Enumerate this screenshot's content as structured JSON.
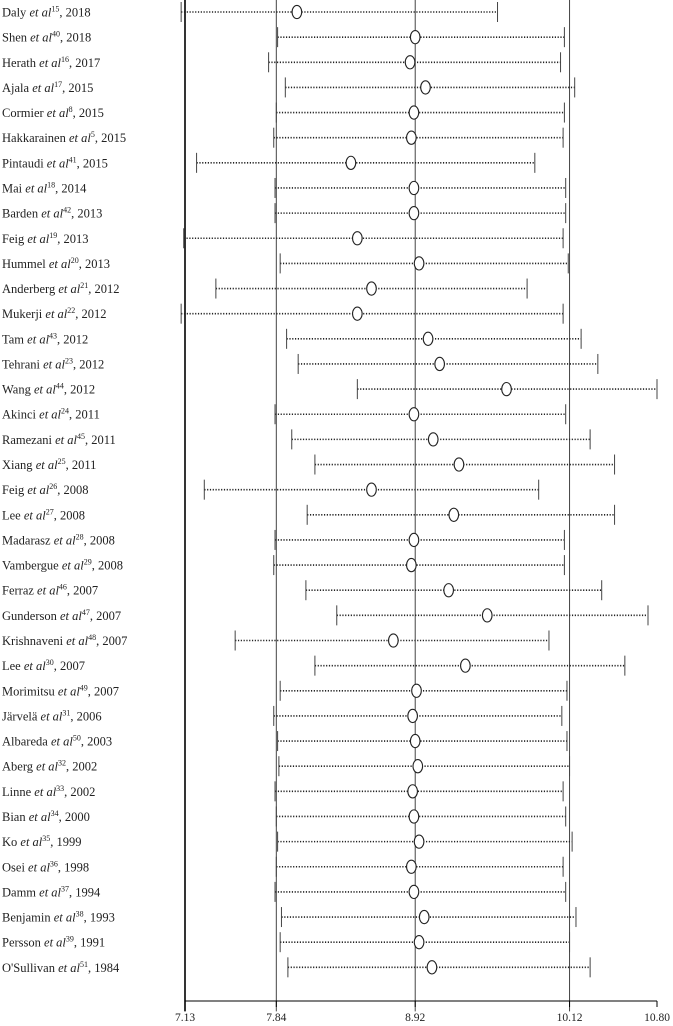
{
  "chart_data": {
    "type": "forest",
    "title": "",
    "xlabel": "",
    "ylabel": "",
    "xlim": [
      7.13,
      10.8
    ],
    "x_ticks": [
      "7.13",
      "7.84",
      "8.92",
      "10.12",
      "10.80"
    ],
    "reference_lines": [
      7.84,
      8.92,
      10.12
    ],
    "studies": [
      {
        "author": "Daly",
        "ref": "15",
        "year": "2018",
        "mean": 8.0,
        "lo": 7.1,
        "hi": 9.56
      },
      {
        "author": "Shen",
        "ref": "40",
        "year": "2018",
        "mean": 8.92,
        "lo": 7.85,
        "hi": 10.08
      },
      {
        "author": "Herath",
        "ref": "16",
        "year": "2017",
        "mean": 8.88,
        "lo": 7.78,
        "hi": 10.05
      },
      {
        "author": "Ajala",
        "ref": "17",
        "year": "2015",
        "mean": 9.0,
        "lo": 7.91,
        "hi": 10.16
      },
      {
        "author": "Cormier",
        "ref": "8",
        "year": "2015",
        "mean": 8.91,
        "lo": 7.84,
        "hi": 10.08
      },
      {
        "author": "Hakkarainen",
        "ref": "5",
        "year": "2015",
        "mean": 8.89,
        "lo": 7.82,
        "hi": 10.07
      },
      {
        "author": "Pintaudi",
        "ref": "41",
        "year": "2015",
        "mean": 8.42,
        "lo": 7.22,
        "hi": 9.85
      },
      {
        "author": "Mai",
        "ref": "18",
        "year": "2014",
        "mean": 8.91,
        "lo": 7.83,
        "hi": 10.09
      },
      {
        "author": "Barden",
        "ref": "42",
        "year": "2013",
        "mean": 8.91,
        "lo": 7.83,
        "hi": 10.09
      },
      {
        "author": "Feig",
        "ref": "19",
        "year": "2013",
        "mean": 8.47,
        "lo": 7.12,
        "hi": 10.07
      },
      {
        "author": "Hummel",
        "ref": "20",
        "year": "2013",
        "mean": 8.95,
        "lo": 7.87,
        "hi": 10.11
      },
      {
        "author": "Anderberg",
        "ref": "21",
        "year": "2012",
        "mean": 8.58,
        "lo": 7.37,
        "hi": 9.79
      },
      {
        "author": "Mukerji",
        "ref": "22",
        "year": "2012",
        "mean": 8.47,
        "lo": 7.1,
        "hi": 10.07
      },
      {
        "author": "Tam",
        "ref": "43",
        "year": "2012",
        "mean": 9.02,
        "lo": 7.92,
        "hi": 10.21
      },
      {
        "author": "Tehrani",
        "ref": "23",
        "year": "2012",
        "mean": 9.11,
        "lo": 8.01,
        "hi": 10.34
      },
      {
        "author": "Wang",
        "ref": "44",
        "year": "2012",
        "mean": 9.63,
        "lo": 8.47,
        "hi": 10.8
      },
      {
        "author": "Akinci",
        "ref": "24",
        "year": "2011",
        "mean": 8.91,
        "lo": 7.83,
        "hi": 10.09
      },
      {
        "author": "Ramezani",
        "ref": "45",
        "year": "2011",
        "mean": 9.06,
        "lo": 7.96,
        "hi": 10.28
      },
      {
        "author": "Xiang",
        "ref": "25",
        "year": "2011",
        "mean": 9.26,
        "lo": 8.14,
        "hi": 10.47
      },
      {
        "author": "Feig",
        "ref": "26",
        "year": "2008",
        "mean": 8.58,
        "lo": 7.28,
        "hi": 9.88
      },
      {
        "author": "Lee",
        "ref": "27",
        "year": "2008",
        "mean": 9.22,
        "lo": 8.08,
        "hi": 10.47
      },
      {
        "author": "Madarasz",
        "ref": "28",
        "year": "2008",
        "mean": 8.91,
        "lo": 7.83,
        "hi": 10.08
      },
      {
        "author": "Vambergue",
        "ref": "29",
        "year": "2008",
        "mean": 8.89,
        "lo": 7.82,
        "hi": 10.08
      },
      {
        "author": "Ferraz",
        "ref": "46",
        "year": "2007",
        "mean": 9.18,
        "lo": 8.07,
        "hi": 10.37
      },
      {
        "author": "Gunderson",
        "ref": "47",
        "year": "2007",
        "mean": 9.48,
        "lo": 8.31,
        "hi": 10.73
      },
      {
        "author": "Krishnaveni",
        "ref": "48",
        "year": "2007",
        "mean": 8.75,
        "lo": 7.52,
        "hi": 9.96
      },
      {
        "author": "Lee",
        "ref": "30",
        "year": "2007",
        "mean": 9.31,
        "lo": 8.14,
        "hi": 10.55
      },
      {
        "author": "Morimitsu",
        "ref": "49",
        "year": "2007",
        "mean": 8.93,
        "lo": 7.87,
        "hi": 10.1
      },
      {
        "author": "Järvelä",
        "ref": "31",
        "year": "2006",
        "mean": 8.9,
        "lo": 7.82,
        "hi": 10.06
      },
      {
        "author": "Albareda",
        "ref": "50",
        "year": "2003",
        "mean": 8.92,
        "lo": 7.85,
        "hi": 10.1
      },
      {
        "author": "Aberg",
        "ref": "32",
        "year": "2002",
        "mean": 8.94,
        "lo": 7.86,
        "hi": 10.12
      },
      {
        "author": "Linne",
        "ref": "33",
        "year": "2002",
        "mean": 8.9,
        "lo": 7.83,
        "hi": 10.07
      },
      {
        "author": "Bian",
        "ref": "34",
        "year": "2000",
        "mean": 8.91,
        "lo": 7.84,
        "hi": 10.09
      },
      {
        "author": "Ko",
        "ref": "35",
        "year": "1999",
        "mean": 8.95,
        "lo": 7.85,
        "hi": 10.14
      },
      {
        "author": "Osei",
        "ref": "36",
        "year": "1998",
        "mean": 8.89,
        "lo": 7.84,
        "hi": 10.07
      },
      {
        "author": "Damm",
        "ref": "37",
        "year": "1994",
        "mean": 8.91,
        "lo": 7.83,
        "hi": 10.09
      },
      {
        "author": "Benjamin",
        "ref": "38",
        "year": "1993",
        "mean": 8.99,
        "lo": 7.88,
        "hi": 10.17
      },
      {
        "author": "Persson",
        "ref": "39",
        "year": "1991",
        "mean": 8.95,
        "lo": 7.87,
        "hi": 10.12
      },
      {
        "author": "O'Sullivan",
        "ref": "51",
        "year": "1984",
        "mean": 9.05,
        "lo": 7.93,
        "hi": 10.28
      }
    ]
  }
}
